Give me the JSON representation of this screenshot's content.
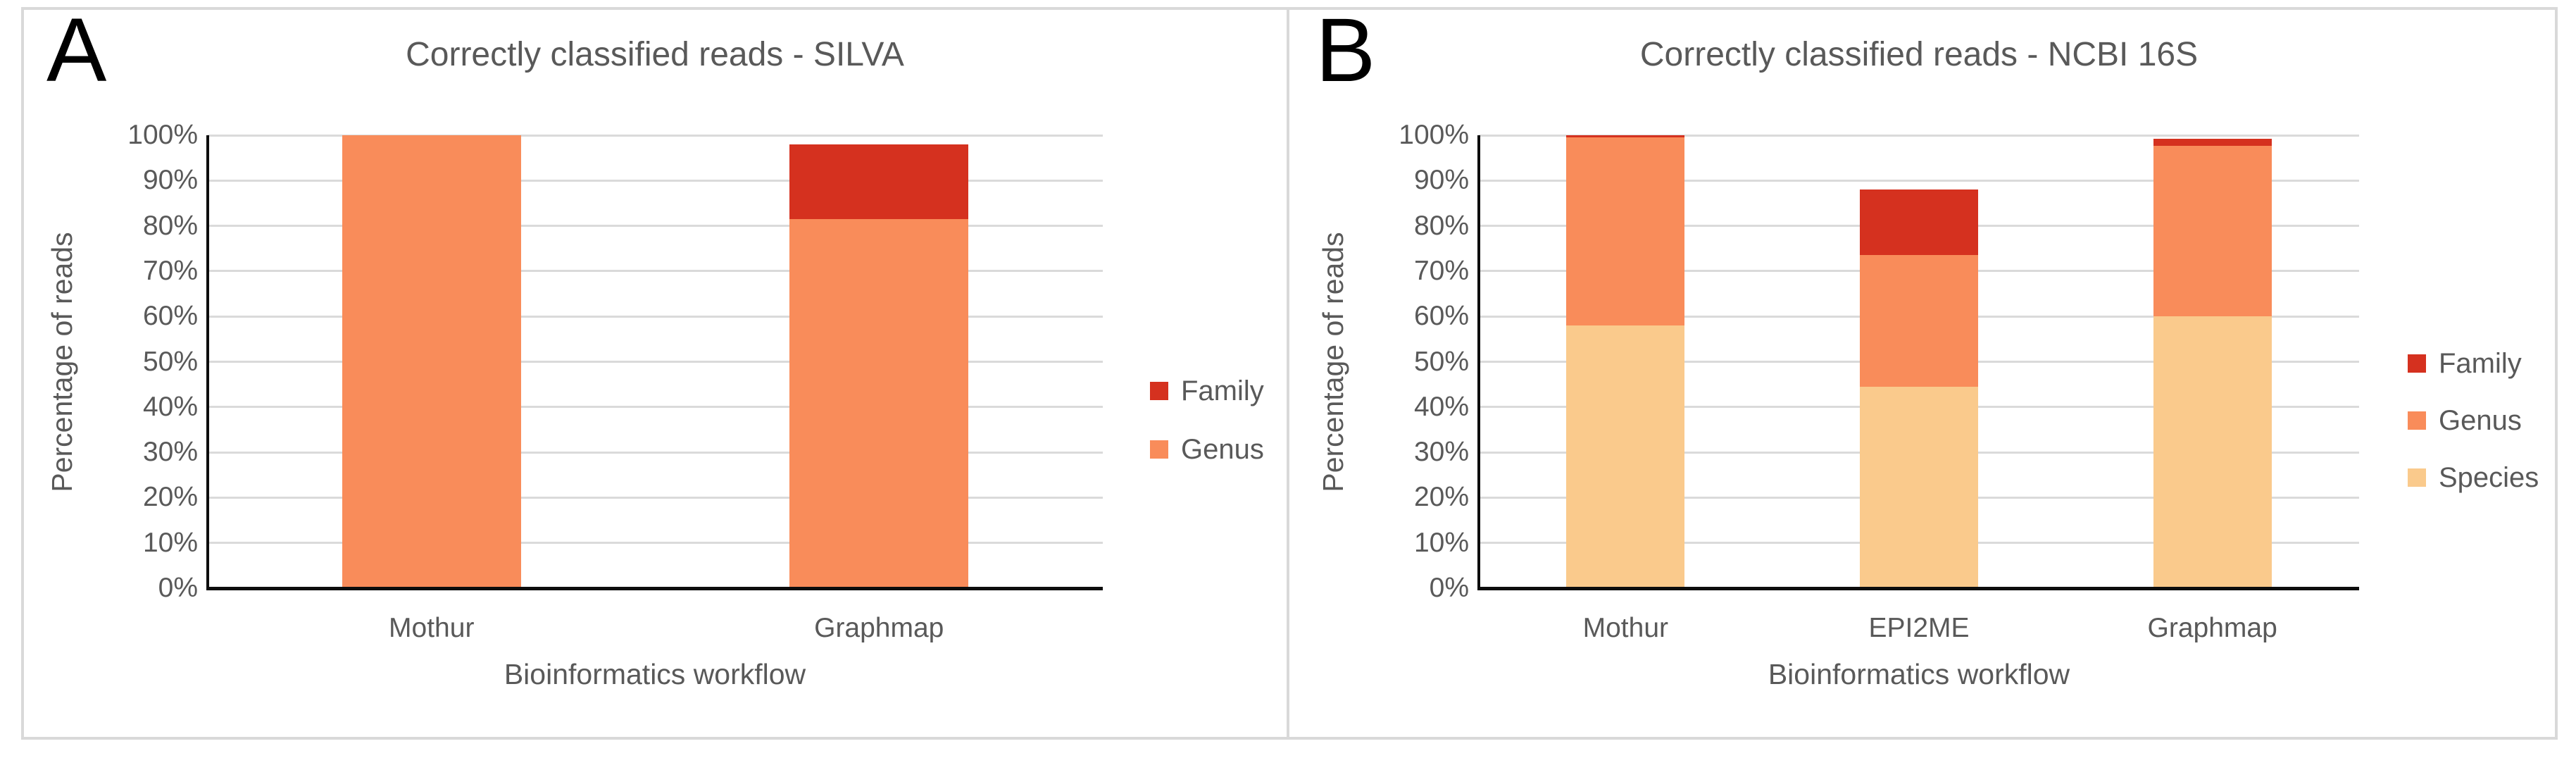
{
  "figure": {
    "background": "#ffffff",
    "frame_color": "#d9d9d9",
    "axis_text_color": "#595959",
    "gridline_color": "#dadada",
    "axis_line_color": "#0d0d0d"
  },
  "chart_data": [
    {
      "type": "bar",
      "stacked": true,
      "panel_label": "A",
      "title": "Correctly classified reads - SILVA",
      "xlabel": "Bioinformatics workflow",
      "ylabel": "Percentage of reads",
      "ylim": [
        0,
        100
      ],
      "grid": true,
      "legend_position": "right",
      "yticks": [
        "0%",
        "10%",
        "20%",
        "30%",
        "40%",
        "50%",
        "60%",
        "70%",
        "80%",
        "90%",
        "100%"
      ],
      "categories": [
        "Mothur",
        "Graphmap"
      ],
      "series": [
        {
          "name": "Family",
          "color": "#d5311f",
          "values": [
            0,
            16.5
          ]
        },
        {
          "name": "Genus",
          "color": "#f98c5a",
          "values": [
            100,
            81.5
          ]
        }
      ],
      "stack_order_bottom_to_top": [
        "Genus",
        "Family"
      ],
      "stack_totals_percent": [
        100,
        98
      ]
    },
    {
      "type": "bar",
      "stacked": true,
      "panel_label": "B",
      "title": "Correctly classified reads - NCBI 16S",
      "xlabel": "Bioinformatics workflow",
      "ylabel": "Percentage of reads",
      "ylim": [
        0,
        100
      ],
      "grid": true,
      "legend_position": "right",
      "yticks": [
        "0%",
        "10%",
        "20%",
        "30%",
        "40%",
        "50%",
        "60%",
        "70%",
        "80%",
        "90%",
        "100%"
      ],
      "categories": [
        "Mothur",
        "EPI2ME",
        "Graphmap"
      ],
      "series": [
        {
          "name": "Family",
          "color": "#d5311f",
          "values": [
            0.4,
            14.5,
            1.5
          ]
        },
        {
          "name": "Genus",
          "color": "#f98c5a",
          "values": [
            41.6,
            29,
            37.7
          ]
        },
        {
          "name": "Species",
          "color": "#faca8c",
          "values": [
            58,
            44.5,
            60
          ]
        }
      ],
      "stack_order_bottom_to_top": [
        "Species",
        "Genus",
        "Family"
      ],
      "stack_totals_percent": [
        100,
        88,
        99.2
      ]
    }
  ]
}
